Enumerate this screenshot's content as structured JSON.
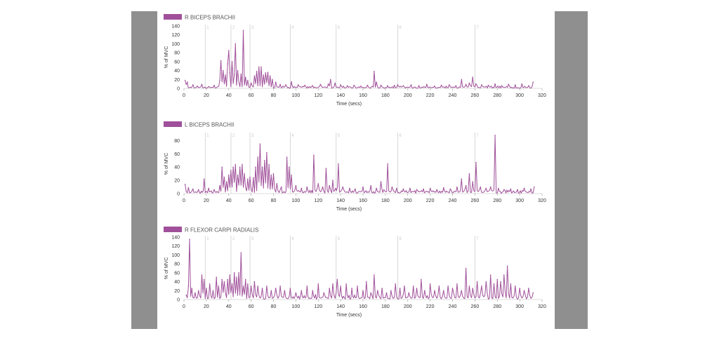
{
  "style": {
    "series_color": "#a0509a",
    "axis_color": "#555555",
    "grid_color": "#d4d4d4",
    "marker_color": "#cfcfcf",
    "frame_color": "#8f8f8f"
  },
  "chart_data": [
    {
      "type": "line",
      "title": "R BICEPS BRACHII",
      "xlabel": "Time (secs)",
      "ylabel": "% of MVC",
      "xlim": [
        0,
        320
      ],
      "ylim": [
        0,
        140
      ],
      "xticks": [
        0,
        20,
        40,
        60,
        80,
        100,
        120,
        140,
        160,
        180,
        200,
        220,
        240,
        260,
        280,
        300,
        320
      ],
      "yticks": [
        0,
        20,
        40,
        60,
        80,
        100,
        120,
        140
      ],
      "event_markers": [
        {
          "label": "1",
          "x": 19
        },
        {
          "label": "2",
          "x": 42
        },
        {
          "label": "3",
          "x": 59
        },
        {
          "label": "4",
          "x": 95
        },
        {
          "label": "5",
          "x": 136
        },
        {
          "label": "6",
          "x": 191
        },
        {
          "label": "7",
          "x": 260
        }
      ],
      "peaks": [
        [
          1,
          18
        ],
        [
          3,
          14
        ],
        [
          8,
          8
        ],
        [
          12,
          5
        ],
        [
          16,
          9
        ],
        [
          22,
          4
        ],
        [
          27,
          7
        ],
        [
          32,
          18
        ],
        [
          33,
          62
        ],
        [
          35,
          40
        ],
        [
          37,
          30
        ],
        [
          39,
          55
        ],
        [
          40,
          85
        ],
        [
          41,
          35
        ],
        [
          43,
          60
        ],
        [
          45,
          30
        ],
        [
          46,
          100
        ],
        [
          48,
          40
        ],
        [
          51,
          32
        ],
        [
          53,
          130
        ],
        [
          55,
          25
        ],
        [
          57,
          18
        ],
        [
          60,
          12
        ],
        [
          63,
          28
        ],
        [
          65,
          38
        ],
        [
          67,
          48
        ],
        [
          69,
          48
        ],
        [
          71,
          30
        ],
        [
          73,
          35
        ],
        [
          75,
          36
        ],
        [
          77,
          28
        ],
        [
          79,
          20
        ],
        [
          82,
          14
        ],
        [
          86,
          9
        ],
        [
          91,
          8
        ],
        [
          96,
          15
        ],
        [
          102,
          8
        ],
        [
          108,
          7
        ],
        [
          115,
          6
        ],
        [
          122,
          9
        ],
        [
          129,
          10
        ],
        [
          131,
          20
        ],
        [
          135,
          12
        ],
        [
          140,
          8
        ],
        [
          146,
          6
        ],
        [
          152,
          7
        ],
        [
          158,
          5
        ],
        [
          164,
          7
        ],
        [
          170,
          38
        ],
        [
          172,
          14
        ],
        [
          176,
          7
        ],
        [
          182,
          6
        ],
        [
          188,
          7
        ],
        [
          191,
          8
        ],
        [
          196,
          6
        ],
        [
          203,
          8
        ],
        [
          210,
          6
        ],
        [
          217,
          9
        ],
        [
          224,
          5
        ],
        [
          230,
          7
        ],
        [
          237,
          8
        ],
        [
          243,
          6
        ],
        [
          248,
          20
        ],
        [
          252,
          9
        ],
        [
          255,
          12
        ],
        [
          258,
          25
        ],
        [
          261,
          10
        ],
        [
          266,
          8
        ],
        [
          272,
          7
        ],
        [
          278,
          10
        ],
        [
          284,
          6
        ],
        [
          290,
          9
        ],
        [
          296,
          8
        ],
        [
          302,
          10
        ],
        [
          308,
          6
        ],
        [
          312,
          14
        ]
      ]
    },
    {
      "type": "line",
      "title": "L BICEPS BRACHII",
      "xlabel": "Time (secs)",
      "ylabel": "% of MVC",
      "xlim": [
        0,
        320
      ],
      "ylim": [
        0,
        90
      ],
      "xticks": [
        0,
        20,
        40,
        60,
        80,
        100,
        120,
        140,
        160,
        180,
        200,
        220,
        240,
        260,
        280,
        300,
        320
      ],
      "yticks": [
        0,
        20,
        40,
        60,
        80
      ],
      "event_markers": [
        {
          "label": "1",
          "x": 19
        },
        {
          "label": "2",
          "x": 42
        },
        {
          "label": "3",
          "x": 59
        },
        {
          "label": "4",
          "x": 95
        },
        {
          "label": "5",
          "x": 136
        },
        {
          "label": "6",
          "x": 191
        },
        {
          "label": "7",
          "x": 260
        }
      ],
      "peaks": [
        [
          1,
          14
        ],
        [
          4,
          9
        ],
        [
          8,
          7
        ],
        [
          13,
          6
        ],
        [
          18,
          22
        ],
        [
          22,
          8
        ],
        [
          27,
          6
        ],
        [
          32,
          12
        ],
        [
          34,
          40
        ],
        [
          36,
          25
        ],
        [
          38,
          18
        ],
        [
          40,
          28
        ],
        [
          42,
          35
        ],
        [
          44,
          40
        ],
        [
          46,
          44
        ],
        [
          48,
          28
        ],
        [
          50,
          40
        ],
        [
          52,
          44
        ],
        [
          54,
          30
        ],
        [
          57,
          22
        ],
        [
          59,
          25
        ],
        [
          62,
          24
        ],
        [
          64,
          40
        ],
        [
          66,
          55
        ],
        [
          68,
          75
        ],
        [
          70,
          40
        ],
        [
          72,
          50
        ],
        [
          74,
          62
        ],
        [
          76,
          44
        ],
        [
          78,
          28
        ],
        [
          80,
          30
        ],
        [
          83,
          15
        ],
        [
          87,
          10
        ],
        [
          92,
          55
        ],
        [
          94,
          40
        ],
        [
          96,
          28
        ],
        [
          100,
          12
        ],
        [
          105,
          8
        ],
        [
          110,
          10
        ],
        [
          116,
          58
        ],
        [
          120,
          15
        ],
        [
          124,
          10
        ],
        [
          127,
          38
        ],
        [
          130,
          12
        ],
        [
          133,
          20
        ],
        [
          138,
          45
        ],
        [
          142,
          10
        ],
        [
          148,
          8
        ],
        [
          153,
          7
        ],
        [
          160,
          10
        ],
        [
          167,
          12
        ],
        [
          172,
          8
        ],
        [
          176,
          18
        ],
        [
          182,
          45
        ],
        [
          186,
          10
        ],
        [
          190,
          8
        ],
        [
          196,
          7
        ],
        [
          202,
          8
        ],
        [
          208,
          6
        ],
        [
          214,
          7
        ],
        [
          220,
          8
        ],
        [
          226,
          6
        ],
        [
          232,
          9
        ],
        [
          238,
          7
        ],
        [
          244,
          10
        ],
        [
          248,
          22
        ],
        [
          252,
          12
        ],
        [
          255,
          30
        ],
        [
          258,
          18
        ],
        [
          261,
          47
        ],
        [
          265,
          10
        ],
        [
          270,
          8
        ],
        [
          274,
          10
        ],
        [
          278,
          88
        ],
        [
          281,
          8
        ],
        [
          286,
          6
        ],
        [
          292,
          7
        ],
        [
          298,
          6
        ],
        [
          304,
          8
        ],
        [
          310,
          7
        ],
        [
          313,
          10
        ]
      ]
    },
    {
      "type": "line",
      "title": "R FLEXOR CARPI RADIALIS",
      "xlabel": "Time (secs)",
      "ylabel": "% of MVC",
      "xlim": [
        0,
        320
      ],
      "ylim": [
        0,
        140
      ],
      "xticks": [
        0,
        20,
        40,
        60,
        80,
        100,
        120,
        140,
        160,
        180,
        200,
        220,
        240,
        260,
        280,
        300,
        320
      ],
      "yticks": [
        0,
        20,
        40,
        60,
        80,
        100,
        120,
        140
      ],
      "event_markers": [
        {
          "label": "1",
          "x": 19
        },
        {
          "label": "2",
          "x": 42
        },
        {
          "label": "3",
          "x": 59
        },
        {
          "label": "4",
          "x": 95
        },
        {
          "label": "5",
          "x": 136
        },
        {
          "label": "6",
          "x": 191
        },
        {
          "label": "7",
          "x": 260
        }
      ],
      "peaks": [
        [
          2,
          10
        ],
        [
          4,
          30
        ],
        [
          5,
          135
        ],
        [
          7,
          25
        ],
        [
          10,
          15
        ],
        [
          13,
          20
        ],
        [
          16,
          55
        ],
        [
          18,
          45
        ],
        [
          20,
          25
        ],
        [
          23,
          35
        ],
        [
          26,
          20
        ],
        [
          29,
          50
        ],
        [
          31,
          30
        ],
        [
          34,
          45
        ],
        [
          36,
          40
        ],
        [
          39,
          45
        ],
        [
          41,
          55
        ],
        [
          43,
          35
        ],
        [
          45,
          60
        ],
        [
          47,
          50
        ],
        [
          49,
          60
        ],
        [
          51,
          105
        ],
        [
          53,
          30
        ],
        [
          55,
          45
        ],
        [
          57,
          35
        ],
        [
          60,
          30
        ],
        [
          63,
          40
        ],
        [
          66,
          30
        ],
        [
          70,
          25
        ],
        [
          74,
          30
        ],
        [
          78,
          20
        ],
        [
          82,
          25
        ],
        [
          86,
          30
        ],
        [
          90,
          20
        ],
        [
          95,
          25
        ],
        [
          100,
          15
        ],
        [
          105,
          20
        ],
        [
          110,
          30
        ],
        [
          115,
          20
        ],
        [
          120,
          35
        ],
        [
          125,
          15
        ],
        [
          130,
          25
        ],
        [
          133,
          35
        ],
        [
          137,
          45
        ],
        [
          140,
          30
        ],
        [
          145,
          35
        ],
        [
          150,
          25
        ],
        [
          155,
          30
        ],
        [
          160,
          20
        ],
        [
          163,
          40
        ],
        [
          167,
          15
        ],
        [
          170,
          55
        ],
        [
          173,
          20
        ],
        [
          177,
          25
        ],
        [
          181,
          15
        ],
        [
          185,
          20
        ],
        [
          189,
          35
        ],
        [
          193,
          25
        ],
        [
          197,
          30
        ],
        [
          201,
          15
        ],
        [
          205,
          30
        ],
        [
          208,
          25
        ],
        [
          212,
          45
        ],
        [
          215,
          20
        ],
        [
          220,
          35
        ],
        [
          224,
          20
        ],
        [
          228,
          30
        ],
        [
          232,
          20
        ],
        [
          236,
          30
        ],
        [
          240,
          25
        ],
        [
          244,
          35
        ],
        [
          248,
          20
        ],
        [
          252,
          70
        ],
        [
          255,
          30
        ],
        [
          258,
          25
        ],
        [
          262,
          40
        ],
        [
          266,
          30
        ],
        [
          270,
          40
        ],
        [
          274,
          55
        ],
        [
          277,
          35
        ],
        [
          280,
          45
        ],
        [
          283,
          40
        ],
        [
          286,
          55
        ],
        [
          289,
          75
        ],
        [
          292,
          35
        ],
        [
          296,
          30
        ],
        [
          300,
          25
        ],
        [
          304,
          20
        ],
        [
          308,
          25
        ],
        [
          312,
          15
        ]
      ]
    }
  ]
}
